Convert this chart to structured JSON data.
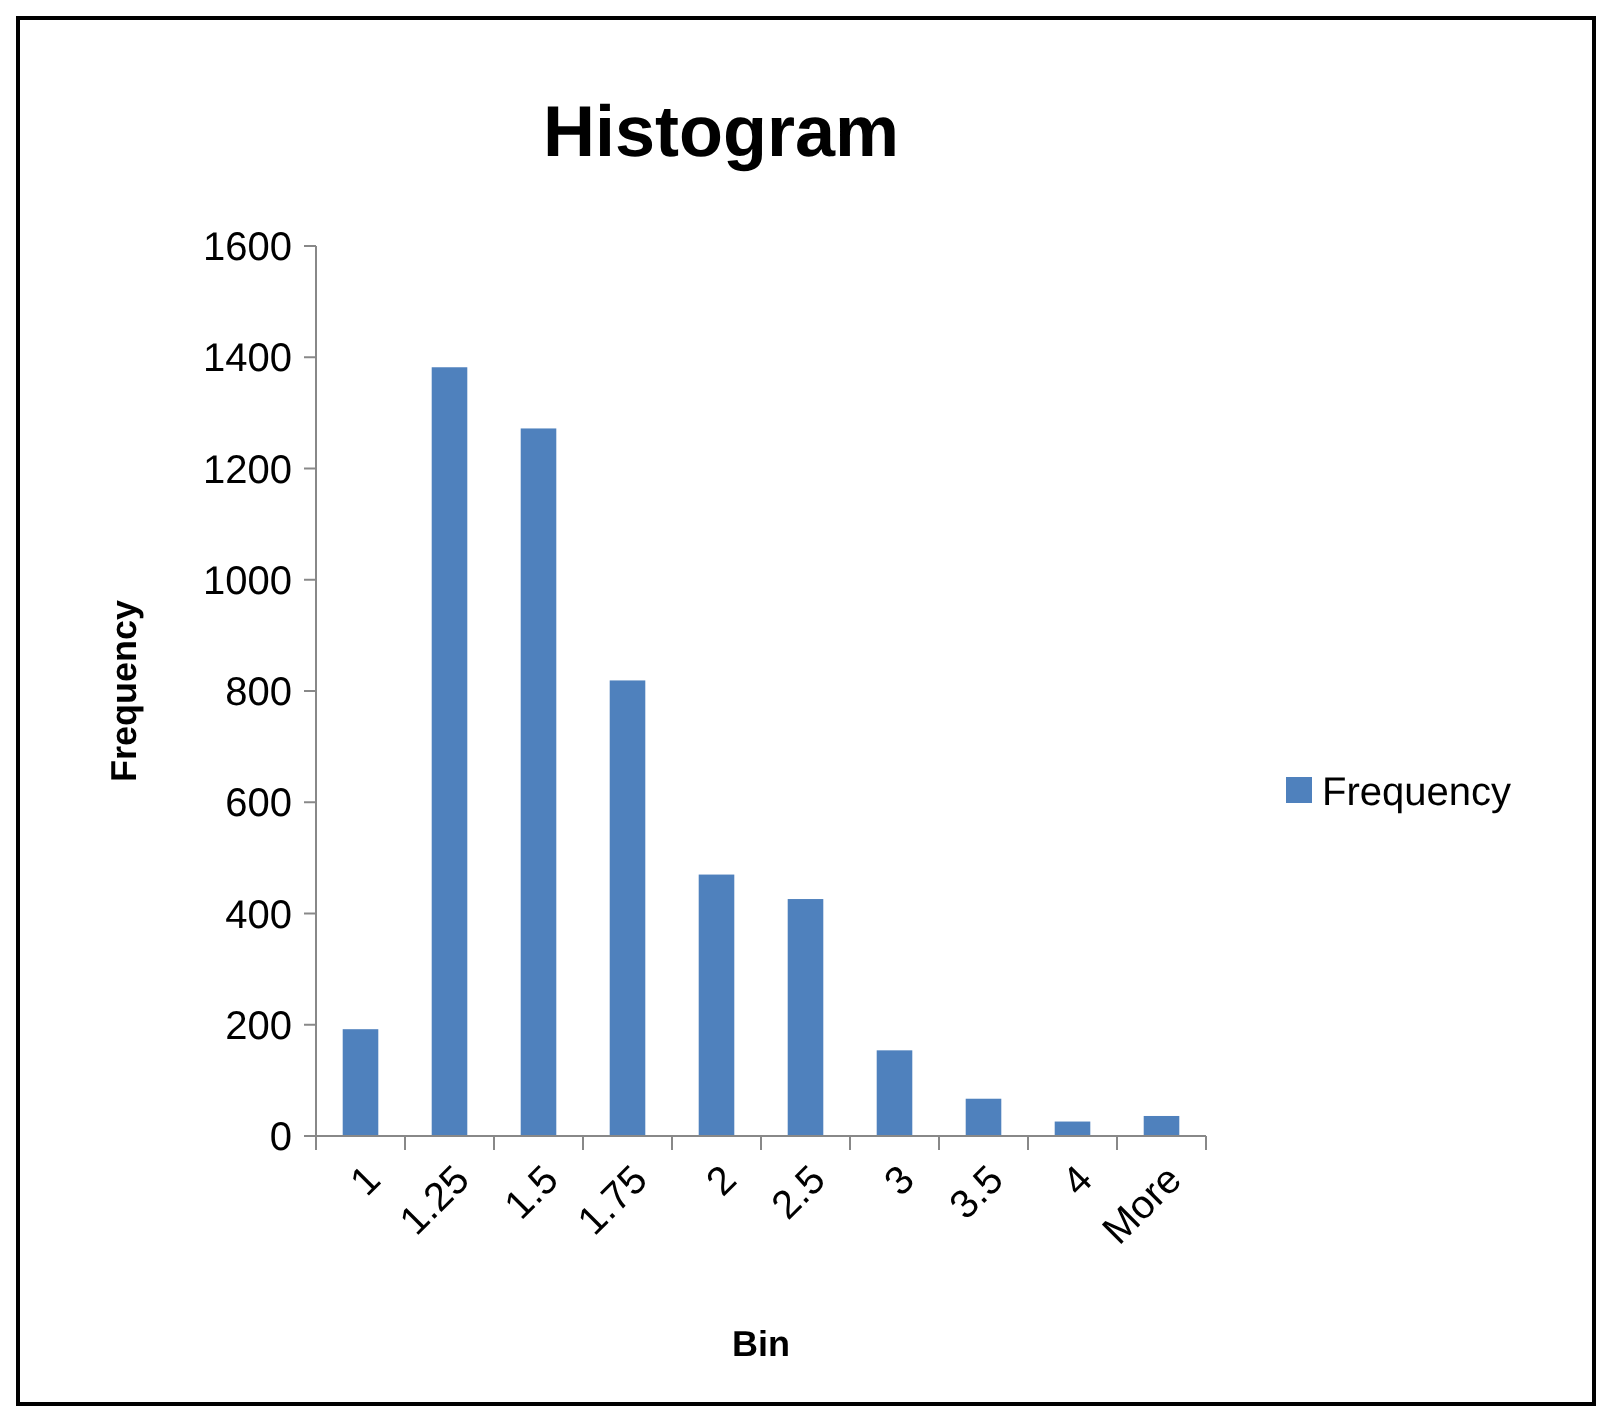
{
  "chart_data": {
    "type": "bar",
    "title": "Histogram",
    "xlabel": "Bin",
    "ylabel": "Frequency",
    "categories": [
      "1",
      "1.25",
      "1.5",
      "1.75",
      "2",
      "2.5",
      "3",
      "3.5",
      "4",
      "More"
    ],
    "series": [
      {
        "name": "Frequency",
        "color": "#4f81bd",
        "values": [
          192,
          1382,
          1272,
          819,
          470,
          426,
          154,
          67,
          26,
          36
        ]
      }
    ],
    "ylim": [
      0,
      1600
    ],
    "yticks": [
      0,
      200,
      400,
      600,
      800,
      1000,
      1200,
      1400,
      1600
    ],
    "grid": false,
    "legend": "right"
  }
}
